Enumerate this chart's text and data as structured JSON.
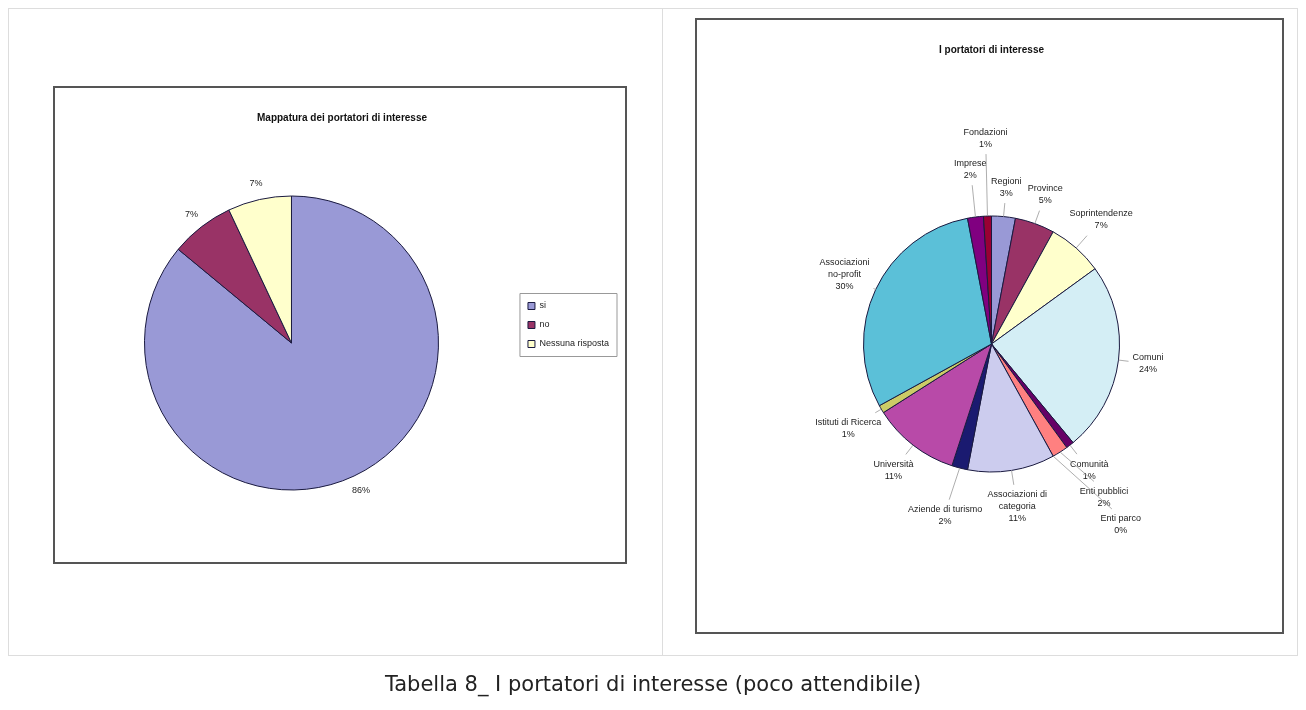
{
  "chart_data": [
    {
      "type": "pie",
      "title": "Mappatura dei portatori di interesse",
      "categories": [
        "si",
        "no",
        "Nessuna risposta"
      ],
      "values": [
        86,
        7,
        7
      ],
      "value_labels": [
        "86%",
        "7%",
        "7%"
      ],
      "colors": [
        "#9999d6",
        "#993366",
        "#ffffcc"
      ],
      "legend": "right",
      "annotations": [
        "Tabella 8_ I portatori di interesse (poco attendibile)"
      ]
    },
    {
      "type": "pie",
      "title": "I portatori di interesse",
      "categories": [
        "Regioni",
        "Province",
        "Soprintendenze",
        "Comuni",
        "Comunità",
        "Enti pubblici",
        "Enti parco",
        "Associazioni di categoria",
        "Aziende di turismo",
        "Università",
        "Istituti di Ricerca",
        "Associazioni no-profit",
        "Imprese",
        "Fondazioni"
      ],
      "values": [
        3,
        5,
        7,
        24,
        1,
        2,
        0,
        11,
        2,
        11,
        1,
        30,
        2,
        1
      ],
      "value_labels": [
        "3%",
        "5%",
        "7%",
        "24%",
        "1%",
        "2%",
        "0%",
        "11%",
        "2%",
        "11%",
        "1%",
        "30%",
        "2%",
        "1%"
      ],
      "colors": [
        "#9999d6",
        "#993366",
        "#ffffcc",
        "#d4eef5",
        "#660066",
        "#ff8080",
        "#0066cc",
        "#ccccee",
        "#1a1a70",
        "#b84aa8",
        "#cccc66",
        "#5bc0d8",
        "#800080",
        "#990033"
      ],
      "legend": false
    }
  ]
}
